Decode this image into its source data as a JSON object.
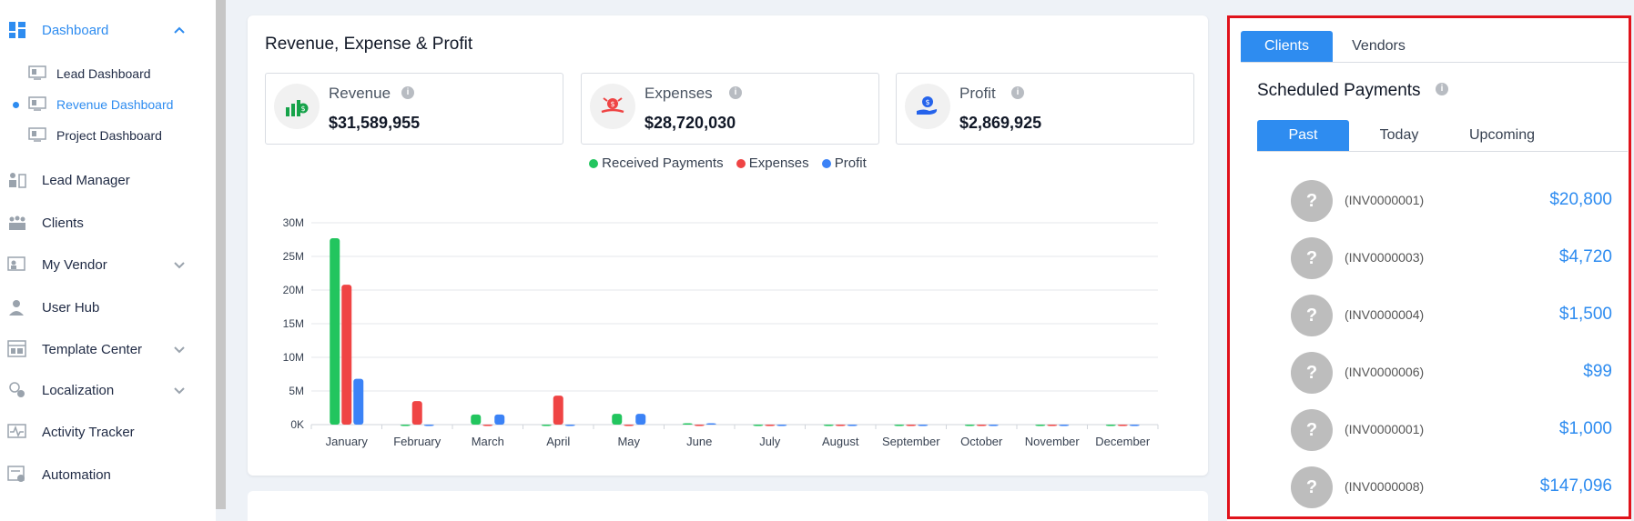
{
  "sidebar": {
    "dashboard": "Dashboard",
    "sub_items": [
      "Lead Dashboard",
      "Revenue Dashboard",
      "Project Dashboard"
    ],
    "items": [
      "Lead Manager",
      "Clients",
      "My Vendor",
      "User Hub",
      "Template Center",
      "Localization",
      "Activity Tracker",
      "Automation"
    ]
  },
  "card": {
    "title": "Revenue, Expense & Profit",
    "stats": [
      {
        "name": "Revenue",
        "value": "$31,589,955"
      },
      {
        "name": "Expenses",
        "value": "$28,720,030"
      },
      {
        "name": "Profit",
        "value": "$2,869,925"
      }
    ],
    "info_glyph": "i"
  },
  "chart_data": {
    "type": "bar",
    "categories": [
      "January",
      "February",
      "March",
      "April",
      "May",
      "June",
      "July",
      "August",
      "September",
      "October",
      "November",
      "December"
    ],
    "series": [
      {
        "name": "Received Payments",
        "color": "#22c55e",
        "values": [
          27.7,
          0,
          1.5,
          0,
          1.6,
          0.2,
          0,
          0,
          0,
          0,
          0,
          0
        ]
      },
      {
        "name": "Expenses",
        "color": "#ef4444",
        "values": [
          20.8,
          3.5,
          0,
          4.3,
          0,
          0,
          0,
          0,
          0,
          0,
          0,
          0
        ]
      },
      {
        "name": "Profit",
        "color": "#3b82f6",
        "values": [
          6.8,
          0,
          1.5,
          0,
          1.6,
          0.2,
          0,
          0,
          0,
          0,
          0,
          0
        ]
      }
    ],
    "y_ticks": [
      "0K",
      "5M",
      "10M",
      "15M",
      "20M",
      "25M",
      "30M"
    ],
    "ylim": [
      0,
      30
    ],
    "grid": true,
    "legend": "top-center"
  },
  "right_panel": {
    "tabs": [
      "Clients",
      "Vendors"
    ],
    "title": "Scheduled Payments",
    "info_glyph": "i",
    "sub_tabs": [
      "Past",
      "Today",
      "Upcoming"
    ],
    "avatar_glyph": "?",
    "payments": [
      {
        "invoice": "(INV0000001)",
        "amount": "$20,800"
      },
      {
        "invoice": "(INV0000003)",
        "amount": "$4,720"
      },
      {
        "invoice": "(INV0000004)",
        "amount": "$1,500"
      },
      {
        "invoice": "(INV0000006)",
        "amount": "$99"
      },
      {
        "invoice": "(INV0000001)",
        "amount": "$1,000"
      },
      {
        "invoice": "(INV0000008)",
        "amount": "$147,096"
      }
    ]
  }
}
